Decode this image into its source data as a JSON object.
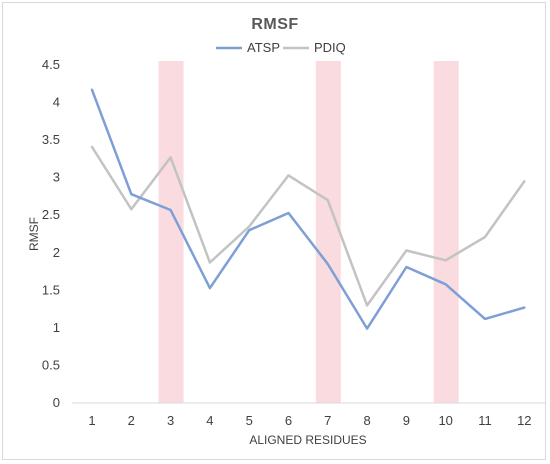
{
  "chart_data": {
    "type": "line",
    "title": "RMSF",
    "xlabel": "ALIGNED RESIDUES",
    "ylabel": "RMSF",
    "categories": [
      "1",
      "2",
      "3",
      "4",
      "5",
      "6",
      "7",
      "8",
      "9",
      "10",
      "11",
      "12"
    ],
    "ylim": [
      0,
      4.5
    ],
    "yticks": [
      "0",
      "0.5",
      "1",
      "1.5",
      "2",
      "2.5",
      "3",
      "3.5",
      "4",
      "4.5"
    ],
    "grid": false,
    "legend_position": "top-center",
    "highlighted_categories": [
      "3",
      "7",
      "10"
    ],
    "highlight_color": "#fadbdf",
    "series": [
      {
        "name": "ATSP",
        "color": "#7e9fd6",
        "values": [
          4.17,
          2.78,
          2.57,
          1.53,
          2.3,
          2.53,
          1.85,
          0.99,
          1.81,
          1.58,
          1.12,
          1.27
        ]
      },
      {
        "name": "PDIQ",
        "color": "#c3c3c3",
        "values": [
          3.41,
          2.58,
          3.27,
          1.87,
          2.35,
          3.03,
          2.7,
          1.3,
          2.03,
          1.9,
          2.21,
          2.95
        ]
      }
    ]
  }
}
